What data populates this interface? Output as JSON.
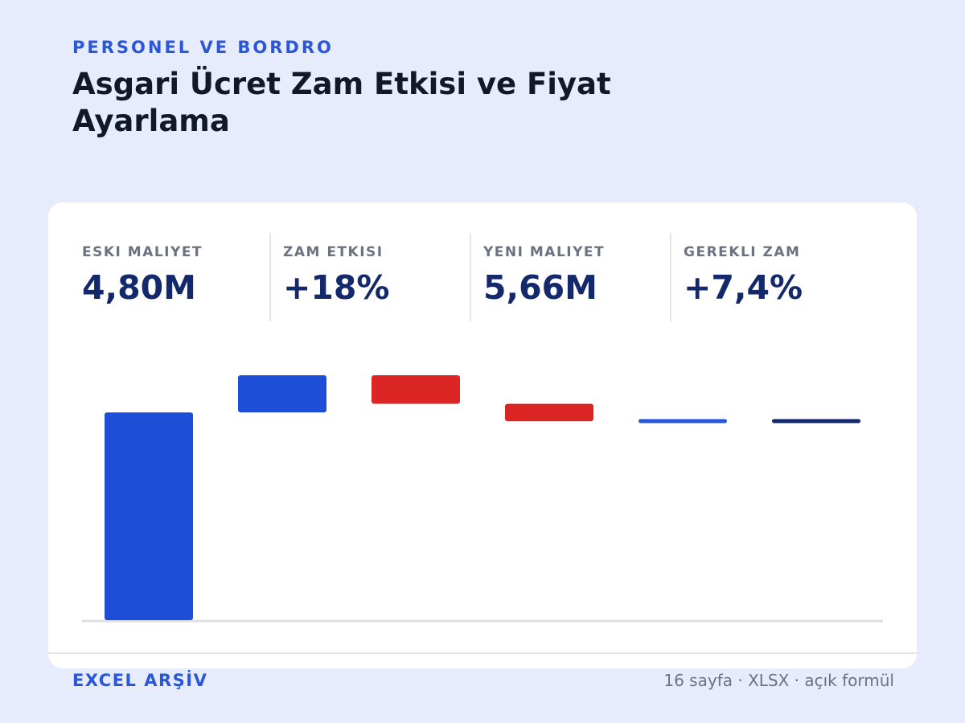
{
  "header": {
    "eyebrow": "PERSONEL VE BORDRO",
    "title": "Asgari Ücret Zam Etkisi ve Fiyat Ayarlama"
  },
  "kpis": [
    {
      "label": "ESKI MALIYET",
      "value": "4,80M"
    },
    {
      "label": "ZAM ETKISI",
      "value": "+18%"
    },
    {
      "label": "YENI MALIYET",
      "value": "5,66M"
    },
    {
      "label": "GEREKLI ZAM",
      "value": "+7,4%"
    }
  ],
  "footer": {
    "brand": "EXCEL ARŞİV",
    "meta": "16 sayfa · XLSX · açık formül"
  },
  "colors": {
    "increase": "#1d4ed8",
    "decrease": "#dc2626",
    "subtotal": "#2a56d8",
    "total": "#13296b",
    "axis": "#dddfe4"
  },
  "chart_data": {
    "type": "bar",
    "subtype": "waterfall",
    "ylim": [
      0,
      6.2
    ],
    "steps": [
      {
        "kind": "increase",
        "start": 0,
        "end": 4.8
      },
      {
        "kind": "increase",
        "start": 4.8,
        "end": 5.66
      },
      {
        "kind": "decrease",
        "start": 5.66,
        "end": 5.0
      },
      {
        "kind": "decrease",
        "start": 5.0,
        "end": 4.6
      },
      {
        "kind": "subtotal",
        "start": 4.6,
        "end": 4.6
      },
      {
        "kind": "total",
        "start": 4.6,
        "end": 4.6
      }
    ]
  }
}
